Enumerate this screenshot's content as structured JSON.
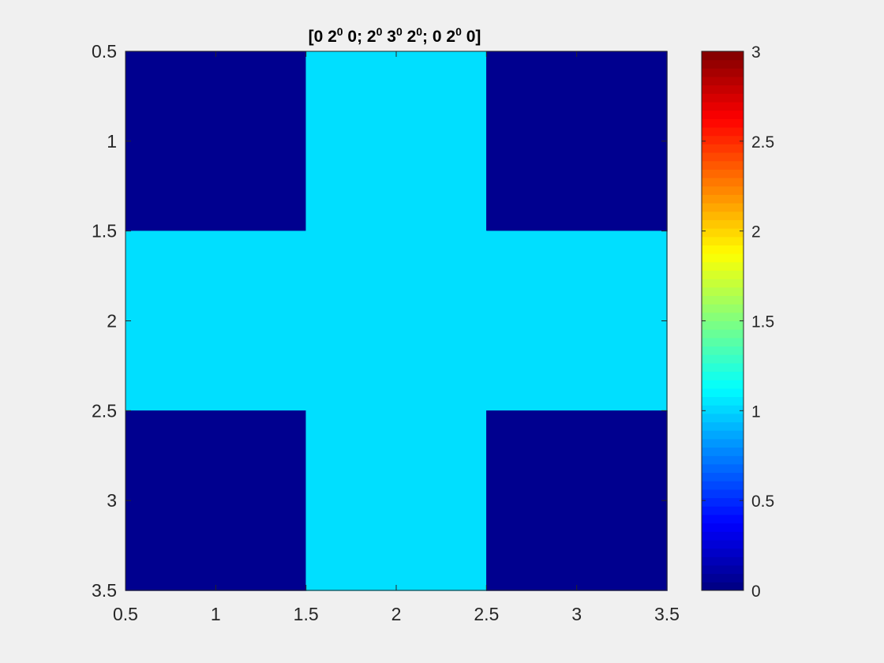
{
  "chart_data": {
    "type": "heatmap",
    "title": "[0 2^0 0; 2^0 3^0 2^0; 0 2^0 0]",
    "title_parts": [
      {
        "text": "[0 2"
      },
      {
        "sup": "0"
      },
      {
        "text": " 0; 2"
      },
      {
        "sup": "0"
      },
      {
        "text": " 3"
      },
      {
        "sup": "0"
      },
      {
        "text": " 2"
      },
      {
        "sup": "0"
      },
      {
        "text": "; 0 2"
      },
      {
        "sup": "0"
      },
      {
        "text": " 0]"
      }
    ],
    "matrix": [
      [
        0,
        1,
        0
      ],
      [
        1,
        1,
        1
      ],
      [
        0,
        1,
        0
      ]
    ],
    "xlim": [
      0.5,
      3.5
    ],
    "ylim": [
      0.5,
      3.5
    ],
    "y_reversed": true,
    "x_ticks": [
      "0.5",
      "1",
      "1.5",
      "2",
      "2.5",
      "3",
      "3.5"
    ],
    "y_ticks": [
      "0.5",
      "1",
      "1.5",
      "2",
      "2.5",
      "3",
      "3.5"
    ],
    "colorbar": {
      "colormap": "jet",
      "clim": [
        0,
        3
      ],
      "ticks": [
        "0",
        "0.5",
        "1",
        "1.5",
        "2",
        "2.5",
        "3"
      ]
    },
    "colors": {
      "low": "#00008f",
      "mid": "#00dfff"
    },
    "grid": false
  }
}
